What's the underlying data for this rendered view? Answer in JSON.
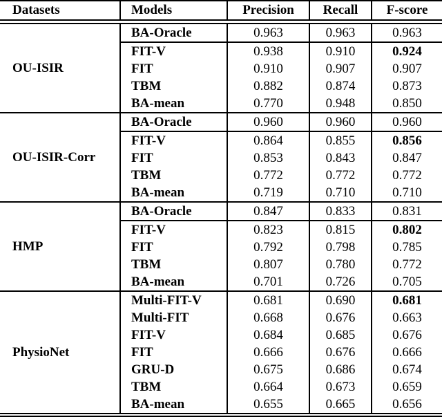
{
  "table": {
    "columns": [
      "Datasets",
      "Models",
      "Precision",
      "Recall",
      "F-score"
    ],
    "colors": {
      "text": "#000000",
      "background": "#ffffff",
      "rule": "#000000"
    },
    "groups": [
      {
        "dataset": "OU-ISIR",
        "rows": [
          {
            "model": "BA-Oracle",
            "precision": "0.963",
            "recall": "0.963",
            "fscore": "0.963",
            "bold_fscore": false,
            "separator_below": true
          },
          {
            "model": "FIT-V",
            "precision": "0.938",
            "recall": "0.910",
            "fscore": "0.924",
            "bold_fscore": true,
            "separator_below": false
          },
          {
            "model": "FIT",
            "precision": "0.910",
            "recall": "0.907",
            "fscore": "0.907",
            "bold_fscore": false,
            "separator_below": false
          },
          {
            "model": "TBM",
            "precision": "0.882",
            "recall": "0.874",
            "fscore": "0.873",
            "bold_fscore": false,
            "separator_below": false
          },
          {
            "model": "BA-mean",
            "precision": "0.770",
            "recall": "0.948",
            "fscore": "0.850",
            "bold_fscore": false,
            "separator_below": false
          }
        ]
      },
      {
        "dataset": "OU-ISIR-Corr",
        "rows": [
          {
            "model": "BA-Oracle",
            "precision": "0.960",
            "recall": "0.960",
            "fscore": "0.960",
            "bold_fscore": false,
            "separator_below": true
          },
          {
            "model": "FIT-V",
            "precision": "0.864",
            "recall": "0.855",
            "fscore": "0.856",
            "bold_fscore": true,
            "separator_below": false
          },
          {
            "model": "FIT",
            "precision": "0.853",
            "recall": "0.843",
            "fscore": "0.847",
            "bold_fscore": false,
            "separator_below": false
          },
          {
            "model": "TBM",
            "precision": "0.772",
            "recall": "0.772",
            "fscore": "0.772",
            "bold_fscore": false,
            "separator_below": false
          },
          {
            "model": "BA-mean",
            "precision": "0.719",
            "recall": "0.710",
            "fscore": "0.710",
            "bold_fscore": false,
            "separator_below": false
          }
        ]
      },
      {
        "dataset": "HMP",
        "rows": [
          {
            "model": "BA-Oracle",
            "precision": "0.847",
            "recall": "0.833",
            "fscore": "0.831",
            "bold_fscore": false,
            "separator_below": true
          },
          {
            "model": "FIT-V",
            "precision": "0.823",
            "recall": "0.815",
            "fscore": "0.802",
            "bold_fscore": true,
            "separator_below": false
          },
          {
            "model": "FIT",
            "precision": "0.792",
            "recall": "0.798",
            "fscore": "0.785",
            "bold_fscore": false,
            "separator_below": false
          },
          {
            "model": "TBM",
            "precision": "0.807",
            "recall": "0.780",
            "fscore": "0.772",
            "bold_fscore": false,
            "separator_below": false
          },
          {
            "model": "BA-mean",
            "precision": "0.701",
            "recall": "0.726",
            "fscore": "0.705",
            "bold_fscore": false,
            "separator_below": false
          }
        ]
      },
      {
        "dataset": "PhysioNet",
        "rows": [
          {
            "model": "Multi-FIT-V",
            "precision": "0.681",
            "recall": "0.690",
            "fscore": "0.681",
            "bold_fscore": true,
            "separator_below": false
          },
          {
            "model": "Multi-FIT",
            "precision": "0.668",
            "recall": "0.676",
            "fscore": "0.663",
            "bold_fscore": false,
            "separator_below": false
          },
          {
            "model": "FIT-V",
            "precision": "0.684",
            "recall": "0.685",
            "fscore": "0.676",
            "bold_fscore": false,
            "separator_below": false
          },
          {
            "model": "FIT",
            "precision": "0.666",
            "recall": "0.676",
            "fscore": "0.666",
            "bold_fscore": false,
            "separator_below": false
          },
          {
            "model": "GRU-D",
            "precision": "0.675",
            "recall": "0.686",
            "fscore": "0.674",
            "bold_fscore": false,
            "separator_below": false
          },
          {
            "model": "TBM",
            "precision": "0.664",
            "recall": "0.673",
            "fscore": "0.659",
            "bold_fscore": false,
            "separator_below": false
          },
          {
            "model": "BA-mean",
            "precision": "0.655",
            "recall": "0.665",
            "fscore": "0.656",
            "bold_fscore": false,
            "separator_below": false
          }
        ]
      }
    ]
  }
}
